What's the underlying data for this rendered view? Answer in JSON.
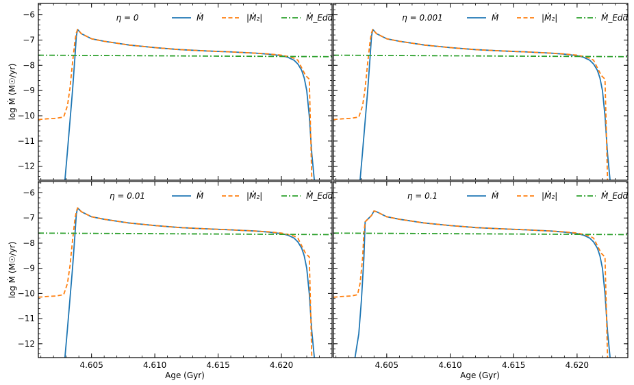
{
  "figure": {
    "ylabel": "log Ṁ (M☉/yr)",
    "xlabel": "Age (Gyr)"
  },
  "legend": {
    "mdot": "Ṁ",
    "m2dot": "|Ṁ₂|",
    "medd": "Ṁ_Edd"
  },
  "colors": {
    "mdot": "#1f77b4",
    "m2dot": "#ff7f0e",
    "medd": "#2ca02c"
  },
  "chart_data": [
    {
      "type": "line",
      "eta_label": "η = 0",
      "xlim": [
        4.6008,
        4.624
      ],
      "ylim": [
        -12.55,
        -5.55
      ],
      "x_ticks": [
        4.605,
        4.61,
        4.615,
        4.62
      ],
      "x_tick_labels": [
        "4.605",
        "4.610",
        "4.615",
        "4.620"
      ],
      "y_ticks": [
        -6,
        -7,
        -8,
        -9,
        -10,
        -11,
        -12
      ],
      "y_tick_labels": [
        "−6",
        "−7",
        "−8",
        "−9",
        "−10",
        "−11",
        "−12"
      ],
      "series": [
        {
          "name": "Ṁ",
          "key": "mdot",
          "style": "solid",
          "x": [
            4.6029,
            4.6031,
            4.6033,
            4.6035,
            4.6037,
            4.6038,
            4.6039,
            4.6042,
            4.605,
            4.606,
            4.608,
            4.61,
            4.612,
            4.614,
            4.616,
            4.618,
            4.619,
            4.62,
            4.6205,
            4.621,
            4.6213,
            4.6216,
            4.6218,
            4.622,
            4.6222,
            4.6224,
            4.6226
          ],
          "y": [
            -12.55,
            -11.4,
            -10.2,
            -9.0,
            -7.6,
            -6.85,
            -6.58,
            -6.75,
            -6.95,
            -7.05,
            -7.2,
            -7.3,
            -7.38,
            -7.43,
            -7.47,
            -7.52,
            -7.56,
            -7.62,
            -7.68,
            -7.8,
            -7.95,
            -8.2,
            -8.5,
            -9.0,
            -10.0,
            -11.5,
            -12.55
          ]
        },
        {
          "name": "|Ṁ₂|",
          "key": "m2dot",
          "style": "dashed",
          "x": [
            4.6008,
            4.6015,
            4.6022,
            4.6028,
            4.6031,
            4.6033,
            4.6035,
            4.6037,
            4.6038,
            4.6039,
            4.6042,
            4.605,
            4.606,
            4.608,
            4.61,
            4.612,
            4.614,
            4.616,
            4.618,
            4.619,
            4.62,
            4.6205,
            4.621,
            4.6213,
            4.6216,
            4.6219,
            4.6222,
            4.6223,
            4.6224
          ],
          "y": [
            -10.15,
            -10.12,
            -10.1,
            -10.05,
            -9.6,
            -8.9,
            -7.9,
            -7.0,
            -6.72,
            -6.58,
            -6.75,
            -6.95,
            -7.05,
            -7.2,
            -7.3,
            -7.38,
            -7.43,
            -7.47,
            -7.52,
            -7.55,
            -7.6,
            -7.65,
            -7.72,
            -7.8,
            -8.1,
            -8.4,
            -8.55,
            -10.5,
            -12.55
          ]
        },
        {
          "name": "Ṁ_Edd",
          "key": "medd",
          "style": "dashdot",
          "x": [
            4.6008,
            4.624
          ],
          "y": [
            -7.6,
            -7.66
          ]
        }
      ]
    },
    {
      "type": "line",
      "eta_label": "η = 0.001",
      "xlim": [
        4.6008,
        4.624
      ],
      "ylim": [
        -12.55,
        -5.55
      ],
      "x_ticks": [
        4.605,
        4.61,
        4.615,
        4.62
      ],
      "x_tick_labels": [
        "4.605",
        "4.610",
        "4.615",
        "4.620"
      ],
      "y_ticks": [
        -6,
        -7,
        -8,
        -9,
        -10,
        -11,
        -12
      ],
      "y_tick_labels": [
        "−6",
        "−7",
        "−8",
        "−9",
        "−10",
        "−11",
        "−12"
      ],
      "series": [
        {
          "name": "Ṁ",
          "key": "mdot",
          "style": "solid",
          "x": [
            4.6029,
            4.6031,
            4.6033,
            4.6035,
            4.6037,
            4.6038,
            4.6039,
            4.6042,
            4.605,
            4.606,
            4.608,
            4.61,
            4.612,
            4.614,
            4.616,
            4.618,
            4.619,
            4.62,
            4.6205,
            4.621,
            4.6213,
            4.6216,
            4.6218,
            4.622,
            4.6222,
            4.6224,
            4.6226
          ],
          "y": [
            -12.55,
            -11.4,
            -10.2,
            -9.0,
            -7.6,
            -6.85,
            -6.58,
            -6.75,
            -6.95,
            -7.05,
            -7.2,
            -7.3,
            -7.38,
            -7.43,
            -7.47,
            -7.52,
            -7.56,
            -7.62,
            -7.68,
            -7.8,
            -7.95,
            -8.2,
            -8.5,
            -9.0,
            -10.0,
            -11.5,
            -12.55
          ]
        },
        {
          "name": "|Ṁ₂|",
          "key": "m2dot",
          "style": "dashed",
          "x": [
            4.6008,
            4.6015,
            4.6022,
            4.6028,
            4.6031,
            4.6033,
            4.6035,
            4.6037,
            4.6038,
            4.6039,
            4.6042,
            4.605,
            4.606,
            4.608,
            4.61,
            4.612,
            4.614,
            4.616,
            4.618,
            4.619,
            4.62,
            4.6205,
            4.621,
            4.6213,
            4.6216,
            4.6219,
            4.6222,
            4.6223,
            4.6224
          ],
          "y": [
            -10.15,
            -10.12,
            -10.1,
            -10.05,
            -9.6,
            -8.9,
            -7.9,
            -7.0,
            -6.72,
            -6.58,
            -6.75,
            -6.95,
            -7.05,
            -7.2,
            -7.3,
            -7.38,
            -7.43,
            -7.47,
            -7.52,
            -7.55,
            -7.6,
            -7.65,
            -7.72,
            -7.8,
            -8.1,
            -8.4,
            -8.55,
            -10.5,
            -12.55
          ]
        },
        {
          "name": "Ṁ_Edd",
          "key": "medd",
          "style": "dashdot",
          "x": [
            4.6008,
            4.624
          ],
          "y": [
            -7.6,
            -7.66
          ]
        }
      ]
    },
    {
      "type": "line",
      "eta_label": "η = 0.01",
      "xlim": [
        4.6008,
        4.624
      ],
      "ylim": [
        -12.55,
        -5.55
      ],
      "x_ticks": [
        4.605,
        4.61,
        4.615,
        4.62
      ],
      "x_tick_labels": [
        "4.605",
        "4.610",
        "4.615",
        "4.620"
      ],
      "y_ticks": [
        -6,
        -7,
        -8,
        -9,
        -10,
        -11,
        -12
      ],
      "y_tick_labels": [
        "−6",
        "−7",
        "−8",
        "−9",
        "−10",
        "−11",
        "−12"
      ],
      "series": [
        {
          "name": "Ṁ",
          "key": "mdot",
          "style": "solid",
          "x": [
            4.6029,
            4.6031,
            4.6033,
            4.6035,
            4.6037,
            4.6038,
            4.6039,
            4.6042,
            4.605,
            4.606,
            4.608,
            4.61,
            4.612,
            4.614,
            4.616,
            4.618,
            4.619,
            4.62,
            4.6205,
            4.621,
            4.6213,
            4.6216,
            4.6218,
            4.622,
            4.6222,
            4.6224,
            4.6226
          ],
          "y": [
            -12.55,
            -11.4,
            -10.2,
            -9.0,
            -7.6,
            -6.85,
            -6.6,
            -6.75,
            -6.95,
            -7.05,
            -7.2,
            -7.3,
            -7.38,
            -7.43,
            -7.47,
            -7.52,
            -7.56,
            -7.62,
            -7.68,
            -7.8,
            -7.95,
            -8.2,
            -8.5,
            -9.0,
            -10.0,
            -11.5,
            -12.55
          ]
        },
        {
          "name": "|Ṁ₂|",
          "key": "m2dot",
          "style": "dashed",
          "x": [
            4.6008,
            4.6015,
            4.6022,
            4.6028,
            4.6031,
            4.6033,
            4.6035,
            4.6037,
            4.6038,
            4.6039,
            4.6042,
            4.605,
            4.606,
            4.608,
            4.61,
            4.612,
            4.614,
            4.616,
            4.618,
            4.619,
            4.62,
            4.6205,
            4.621,
            4.6213,
            4.6216,
            4.6219,
            4.6222,
            4.6223,
            4.6224
          ],
          "y": [
            -10.15,
            -10.12,
            -10.1,
            -10.05,
            -9.6,
            -8.9,
            -7.9,
            -7.0,
            -6.75,
            -6.6,
            -6.75,
            -6.95,
            -7.05,
            -7.2,
            -7.3,
            -7.38,
            -7.43,
            -7.47,
            -7.52,
            -7.55,
            -7.6,
            -7.65,
            -7.72,
            -7.8,
            -8.1,
            -8.4,
            -8.55,
            -10.5,
            -12.55
          ]
        },
        {
          "name": "Ṁ_Edd",
          "key": "medd",
          "style": "dashdot",
          "x": [
            4.6008,
            4.624
          ],
          "y": [
            -7.6,
            -7.66
          ]
        }
      ]
    },
    {
      "type": "line",
      "eta_label": "η = 0.1",
      "xlim": [
        4.6008,
        4.624
      ],
      "ylim": [
        -12.55,
        -5.55
      ],
      "x_ticks": [
        4.605,
        4.61,
        4.615,
        4.62
      ],
      "x_tick_labels": [
        "4.605",
        "4.610",
        "4.615",
        "4.620"
      ],
      "y_ticks": [
        -6,
        -7,
        -8,
        -9,
        -10,
        -11,
        -12
      ],
      "y_tick_labels": [
        "−6",
        "−7",
        "−8",
        "−9",
        "−10",
        "−11",
        "−12"
      ],
      "series": [
        {
          "name": "Ṁ",
          "key": "mdot",
          "style": "solid",
          "x": [
            4.6025,
            4.6028,
            4.603,
            4.6032,
            4.6033,
            4.6035,
            4.6038,
            4.604,
            4.6042,
            4.605,
            4.606,
            4.608,
            4.61,
            4.612,
            4.614,
            4.616,
            4.618,
            4.619,
            4.62,
            4.6205,
            4.621,
            4.6213,
            4.6216,
            4.6218,
            4.622,
            4.6222,
            4.6224,
            4.6226
          ],
          "y": [
            -12.55,
            -11.6,
            -10.3,
            -8.6,
            -7.15,
            -7.05,
            -6.9,
            -6.72,
            -6.75,
            -6.95,
            -7.05,
            -7.2,
            -7.3,
            -7.38,
            -7.43,
            -7.47,
            -7.52,
            -7.56,
            -7.62,
            -7.68,
            -7.8,
            -7.95,
            -8.2,
            -8.5,
            -9.0,
            -10.0,
            -11.5,
            -12.55
          ]
        },
        {
          "name": "|Ṁ₂|",
          "key": "m2dot",
          "style": "dashed",
          "x": [
            4.6008,
            4.6015,
            4.6022,
            4.6027,
            4.6029,
            4.6031,
            4.6032,
            4.6033,
            4.6035,
            4.6038,
            4.604,
            4.6042,
            4.605,
            4.606,
            4.608,
            4.61,
            4.612,
            4.614,
            4.616,
            4.618,
            4.619,
            4.62,
            4.6205,
            4.621,
            4.6213,
            4.6216,
            4.6219,
            4.6222,
            4.6223,
            4.6224
          ],
          "y": [
            -10.15,
            -10.12,
            -10.1,
            -10.05,
            -9.6,
            -8.6,
            -7.6,
            -7.15,
            -7.05,
            -6.9,
            -6.72,
            -6.75,
            -6.95,
            -7.05,
            -7.2,
            -7.3,
            -7.38,
            -7.43,
            -7.47,
            -7.52,
            -7.55,
            -7.6,
            -7.65,
            -7.72,
            -7.8,
            -8.1,
            -8.4,
            -8.55,
            -10.5,
            -12.55
          ]
        },
        {
          "name": "Ṁ_Edd",
          "key": "medd",
          "style": "dashdot",
          "x": [
            4.6008,
            4.624
          ],
          "y": [
            -7.6,
            -7.66
          ]
        }
      ]
    }
  ]
}
